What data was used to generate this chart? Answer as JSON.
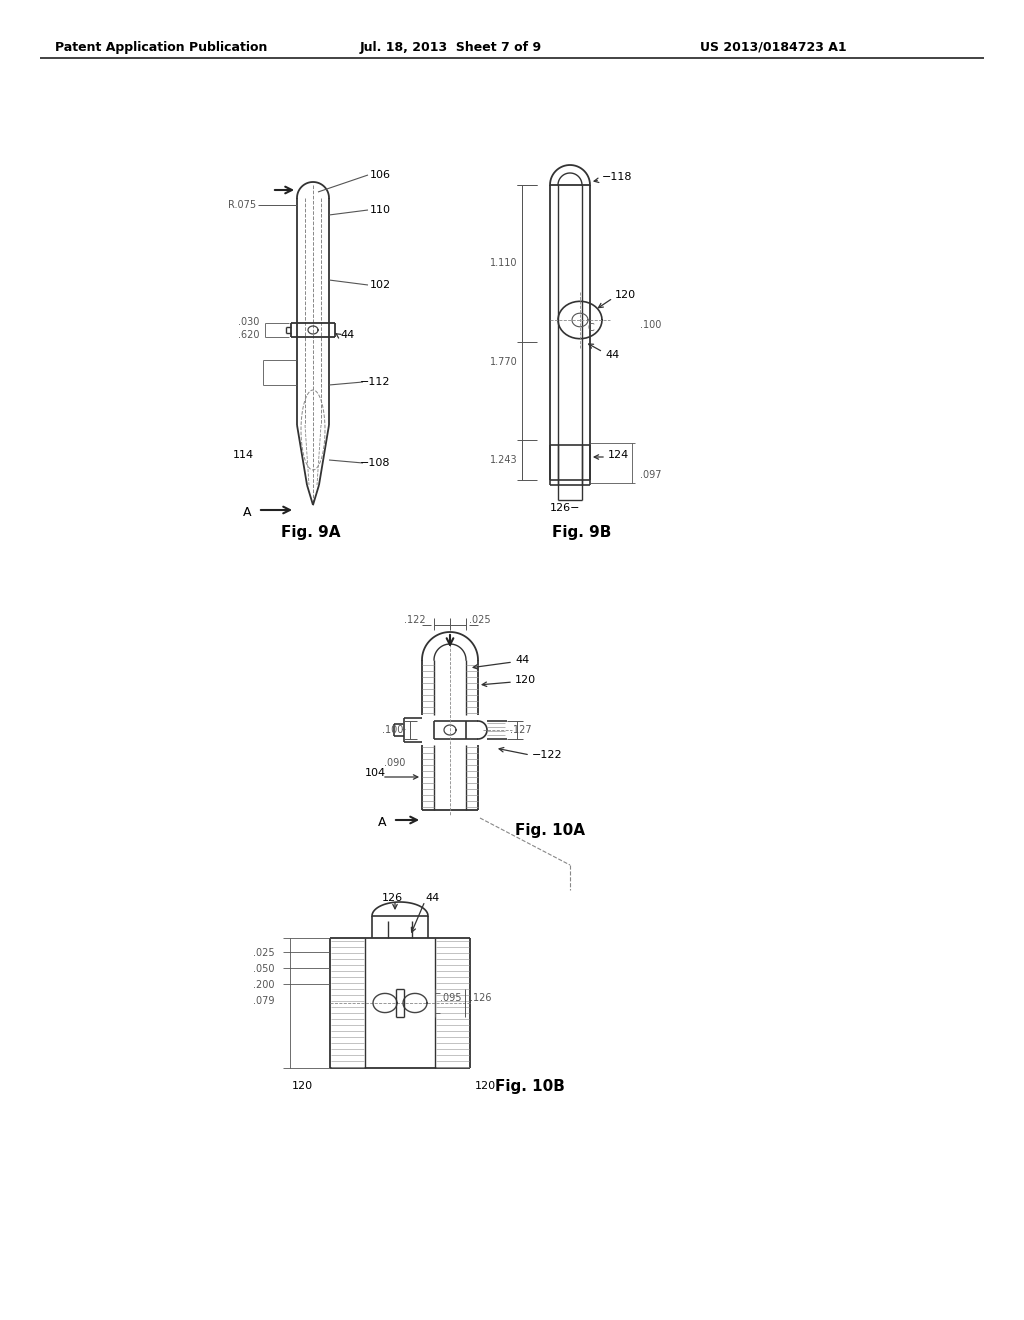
{
  "background_color": "#ffffff",
  "header_left": "Patent Application Publication",
  "header_center": "Jul. 18, 2013  Sheet 7 of 9",
  "header_right": "US 2013/0184723 A1",
  "fig9A_label": "Fig. 9A",
  "fig9B_label": "Fig. 9B",
  "fig10A_label": "Fig. 10A",
  "fig10B_label": "Fig. 10B",
  "text_color": "#000000",
  "line_color": "#444444",
  "dim_color": "#555555"
}
